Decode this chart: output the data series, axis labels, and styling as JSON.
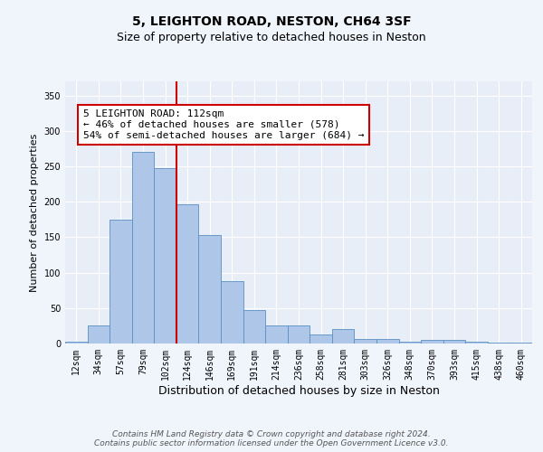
{
  "title_line1": "5, LEIGHTON ROAD, NESTON, CH64 3SF",
  "title_line2": "Size of property relative to detached houses in Neston",
  "xlabel": "Distribution of detached houses by size in Neston",
  "ylabel": "Number of detached properties",
  "categories": [
    "12sqm",
    "34sqm",
    "57sqm",
    "79sqm",
    "102sqm",
    "124sqm",
    "146sqm",
    "169sqm",
    "191sqm",
    "214sqm",
    "236sqm",
    "258sqm",
    "281sqm",
    "303sqm",
    "326sqm",
    "348sqm",
    "370sqm",
    "393sqm",
    "415sqm",
    "438sqm",
    "460sqm"
  ],
  "values": [
    3,
    25,
    175,
    270,
    247,
    197,
    153,
    88,
    47,
    25,
    25,
    13,
    20,
    7,
    7,
    2,
    5,
    5,
    2,
    1,
    1
  ],
  "bar_color": "#aec6e8",
  "bar_edge_color": "#5a8fc2",
  "vline_x_index": 4.5,
  "vline_color": "#cc0000",
  "annotation_text": "5 LEIGHTON ROAD: 112sqm\n← 46% of detached houses are smaller (578)\n54% of semi-detached houses are larger (684) →",
  "annotation_box_color": "#ffffff",
  "annotation_box_edge_color": "#cc0000",
  "ylim": [
    0,
    370
  ],
  "yticks": [
    0,
    50,
    100,
    150,
    200,
    250,
    300,
    350
  ],
  "fig_bg_color": "#f0f4fb",
  "ax_bg_color": "#e8eef7",
  "grid_color": "#ffffff",
  "footer_line1": "Contains HM Land Registry data © Crown copyright and database right 2024.",
  "footer_line2": "Contains public sector information licensed under the Open Government Licence v3.0.",
  "title_fontsize": 10,
  "subtitle_fontsize": 9,
  "xlabel_fontsize": 9,
  "ylabel_fontsize": 8,
  "tick_fontsize": 7,
  "annotation_fontsize": 8,
  "footer_fontsize": 6.5
}
